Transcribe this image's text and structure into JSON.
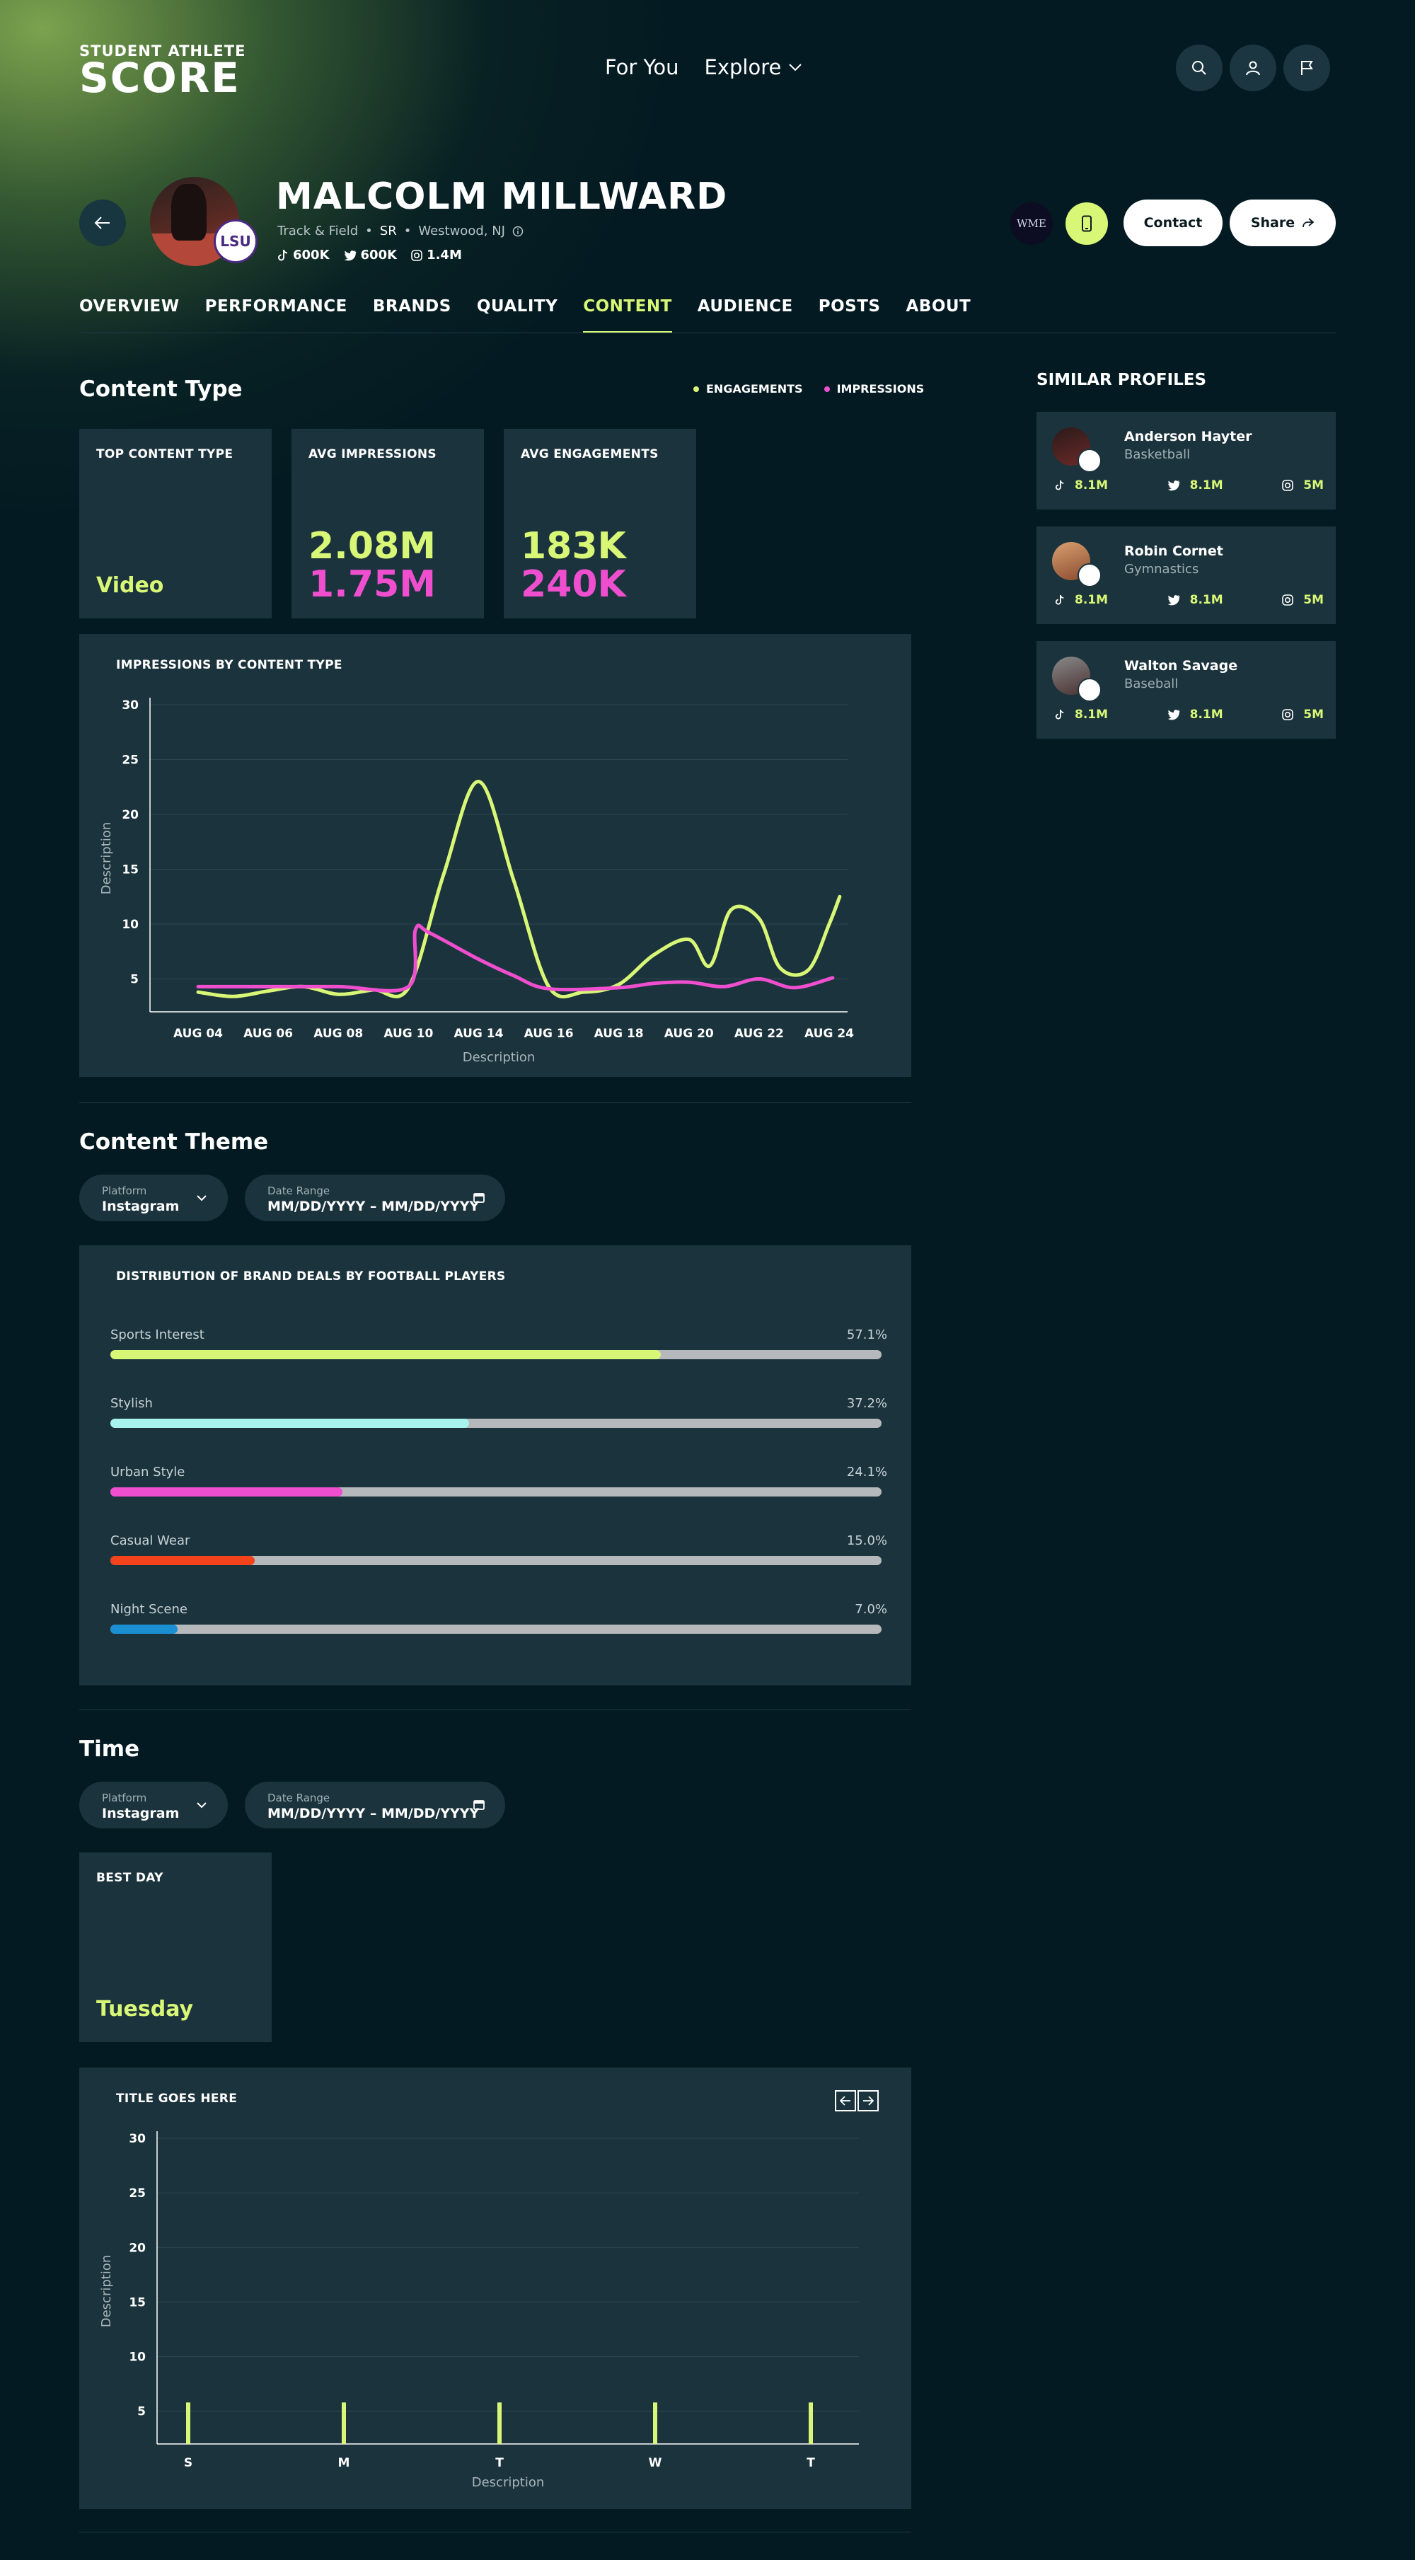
{
  "header": {
    "logo_line1": "STUDENT ATHLETE",
    "logo_line2": "SCORE",
    "nav": [
      {
        "label": "For You"
      },
      {
        "label": "Explore"
      }
    ]
  },
  "profile": {
    "name": "MALCOLM MILLWARD",
    "sport": "Track & Field",
    "year": "SR",
    "location": "Westwood, NJ",
    "school": "LSU",
    "tiktok": "600K",
    "twitter": "600K",
    "instagram": "1.4M",
    "agency": "WME",
    "contact_label": "Contact",
    "share_label": "Share"
  },
  "tabs": [
    {
      "label": "OVERVIEW"
    },
    {
      "label": "PERFORMANCE"
    },
    {
      "label": "BRANDS"
    },
    {
      "label": "QUALITY"
    },
    {
      "label": "CONTENT"
    },
    {
      "label": "AUDIENCE"
    },
    {
      "label": "POSTS"
    },
    {
      "label": "ABOUT"
    }
  ],
  "content_type": {
    "title": "Content Type",
    "legend": [
      {
        "label": "ENGAGEMENTS",
        "color": "#d9f776"
      },
      {
        "label": "IMPRESSIONS",
        "color": "#ef4fcf"
      }
    ],
    "cards": {
      "top_type_label": "TOP CONTENT TYPE",
      "top_type_value": "Video",
      "avg_impressions_label": "AVG IMPRESSIONS",
      "avg_impressions_a": "2.08M",
      "avg_impressions_b": "1.75M",
      "avg_engagements_label": "AVG ENGAGEMENTS",
      "avg_engagements_a": "183K",
      "avg_engagements_b": "240K"
    }
  },
  "chart_data": [
    {
      "type": "line",
      "title": "IMPRESSIONS BY CONTENT TYPE",
      "xlabel": "Description",
      "ylabel": "Description",
      "ylim": [
        2,
        30
      ],
      "yticks": [
        5,
        10,
        15,
        20,
        25,
        30
      ],
      "x_ticks": [
        "AUG 04",
        "AUG 06",
        "AUG 08",
        "AUG 10",
        "AUG 14",
        "AUG 16",
        "AUG 18",
        "AUG 20",
        "AUG 22",
        "AUG 24"
      ],
      "grid": true,
      "series": [
        {
          "name": "ENGAGEMENTS",
          "color": "#d9f776",
          "x": [
            0,
            0.5,
            1,
            1.5,
            2,
            2.5,
            3,
            3.5,
            4,
            4.5,
            5,
            5.5,
            6,
            6.5,
            7,
            7.3,
            7.6,
            8,
            8.3,
            8.7,
            9,
            9.15
          ],
          "values": [
            3.8,
            3.4,
            3.9,
            4.3,
            3.6,
            4.0,
            4.2,
            14.5,
            23,
            14.0,
            4.3,
            3.8,
            4.5,
            7.2,
            8.6,
            6.2,
            11.3,
            10.5,
            6.0,
            5.8,
            10.0,
            12.5
          ]
        },
        {
          "name": "IMPRESSIONS",
          "color": "#ef4fcf",
          "x": [
            0,
            1,
            2,
            3,
            3.1,
            3.3,
            4,
            4.5,
            5,
            6,
            6.5,
            7,
            7.5,
            8,
            8.5,
            9.05
          ],
          "values": [
            4.3,
            4.3,
            4.3,
            4.3,
            9.5,
            9.2,
            6.8,
            5.3,
            4.1,
            4.2,
            4.6,
            4.7,
            4.3,
            5.0,
            4.2,
            5.1
          ]
        }
      ]
    },
    {
      "type": "bar",
      "title": "TITLE GOES HERE",
      "xlabel": "Description",
      "ylabel": "Description",
      "ylim": [
        2,
        30
      ],
      "yticks": [
        5,
        10,
        15,
        20,
        25,
        30
      ],
      "categories": [
        "S",
        "M",
        "T",
        "W",
        "T"
      ],
      "values": [
        5.8,
        5.8,
        5.8,
        5.8,
        5.8
      ],
      "color": "#d9f776",
      "grid": true
    }
  ],
  "content_theme": {
    "title": "Content Theme",
    "platform_label": "Platform",
    "platform_value": "Instagram",
    "date_label": "Date Range",
    "date_value": "MM/DD/YYYY – MM/DD/YYYY",
    "panel_title": "DISTRIBUTION OF BRAND DEALS BY FOOTBALL PLAYERS",
    "bars": [
      {
        "label": "Sports Interest",
        "value": 57.1,
        "display": "57.1%",
        "color": "#d9f776"
      },
      {
        "label": "Stylish",
        "value": 37.2,
        "display": "37.2%",
        "color": "#a9f3ee"
      },
      {
        "label": "Urban Style",
        "value": 24.1,
        "display": "24.1%",
        "color": "#ef4fcf"
      },
      {
        "label": "Casual Wear",
        "value": 15.0,
        "display": "15.0%",
        "color": "#f2431c"
      },
      {
        "label": "Night Scene",
        "value": 7.0,
        "display": "7.0%",
        "color": "#1a8fd1"
      }
    ],
    "bar_scale_max": 80
  },
  "time": {
    "title": "Time",
    "platform_label": "Platform",
    "platform_value": "Instagram",
    "date_label": "Date Range",
    "date_value": "MM/DD/YYYY – MM/DD/YYYY",
    "best_day_label": "BEST DAY",
    "best_day_value": "Tuesday"
  },
  "similar": {
    "title": "SIMILAR PROFILES",
    "profiles": [
      {
        "name": "Anderson Hayter",
        "sport": "Basketball",
        "tiktok": "8.1M",
        "twitter": "8.1M",
        "instagram": "5M"
      },
      {
        "name": "Robin Cornet",
        "sport": "Gymnastics",
        "tiktok": "8.1M",
        "twitter": "8.1M",
        "instagram": "5M"
      },
      {
        "name": "Walton Savage",
        "sport": "Baseball",
        "tiktok": "8.1M",
        "twitter": "8.1M",
        "instagram": "5M"
      }
    ]
  }
}
